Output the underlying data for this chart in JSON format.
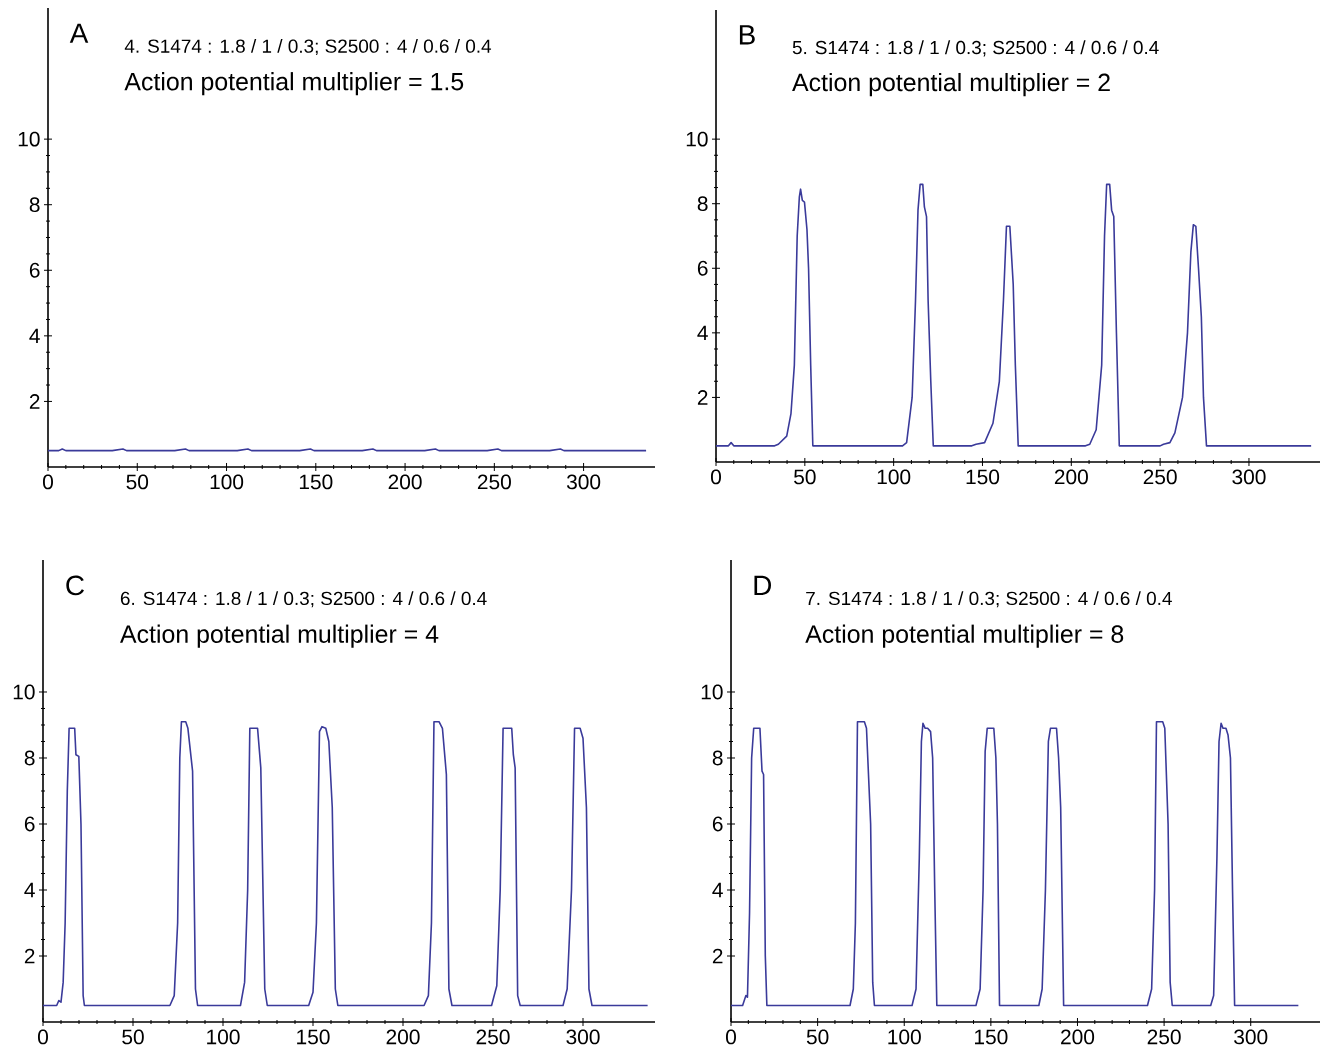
{
  "chart_data": [
    {
      "type": "line",
      "title": "4. S1474 : 1.8 / 1 / 0.3; S2500 : 4 / 0.6 / 0.4",
      "subtitle": "Action potential multiplier = 1.5",
      "annotations": [
        "A"
      ],
      "color": "#3a3a9a",
      "xlim": [
        0,
        340
      ],
      "ylim": [
        0,
        14
      ],
      "xticks": [
        0,
        50,
        100,
        150,
        200,
        250,
        300
      ],
      "yticks": [
        2,
        4,
        6,
        8,
        10
      ],
      "x": [
        0,
        6,
        8,
        10,
        36,
        42,
        44,
        71,
        77,
        79,
        106,
        112,
        114,
        141,
        147,
        149,
        176,
        182,
        184,
        211,
        217,
        219,
        246,
        252,
        254,
        281,
        287,
        289,
        335
      ],
      "values": [
        0.5,
        0.5,
        0.55,
        0.5,
        0.5,
        0.55,
        0.5,
        0.5,
        0.55,
        0.5,
        0.5,
        0.55,
        0.5,
        0.5,
        0.55,
        0.5,
        0.5,
        0.55,
        0.5,
        0.5,
        0.55,
        0.5,
        0.5,
        0.55,
        0.5,
        0.5,
        0.55,
        0.5,
        0.5
      ]
    },
    {
      "type": "line",
      "title": "5. S1474 : 1.8 / 1 / 0.3; S2500 : 4 / 0.6 / 0.4",
      "subtitle": "Action potential multiplier = 2",
      "annotations": [
        "B"
      ],
      "color": "#3a3a9a",
      "xlim": [
        0,
        340
      ],
      "ylim": [
        0,
        14
      ],
      "xticks": [
        0,
        50,
        100,
        150,
        200,
        250,
        300
      ],
      "yticks": [
        2,
        4,
        6,
        8,
        10
      ],
      "x": [
        0,
        7,
        8.5,
        10,
        33,
        35.1,
        39.8,
        42.2,
        44.1,
        45.7,
        46.9,
        47.6,
        48.6,
        49.8,
        51.2,
        52.1,
        53.3,
        54.5,
        105,
        107.3,
        110.4,
        112.3,
        113.7,
        114.9,
        116.4,
        117.3,
        118.5,
        119.4,
        120.9,
        122.3,
        144,
        146.4,
        151.2,
        155.9,
        159.5,
        161.8,
        163.5,
        165.4,
        167.3,
        168.5,
        170.1,
        208,
        210.4,
        214,
        217.1,
        218.7,
        219.9,
        221.6,
        222.7,
        223.9,
        225.4,
        227,
        250,
        251.9,
        255.5,
        258.3,
        262.6,
        265.4,
        267.3,
        268.7,
        270.1,
        271.6,
        273.2,
        274.4,
        276.1,
        335
      ],
      "values": [
        0.5,
        0.5,
        0.6,
        0.5,
        0.5,
        0.55,
        0.8,
        1.5,
        3,
        7,
        8.2,
        8.45,
        8.1,
        8.05,
        7.2,
        6,
        3,
        0.5,
        0.5,
        0.6,
        2,
        5,
        7.8,
        8.6,
        8.6,
        7.9,
        7.6,
        5,
        2.5,
        0.5,
        0.5,
        0.55,
        0.6,
        1.2,
        2.5,
        5,
        7.3,
        7.3,
        5.5,
        3,
        0.5,
        0.5,
        0.55,
        1,
        3,
        7,
        8.6,
        8.6,
        7.8,
        7.6,
        4,
        0.5,
        0.5,
        0.55,
        0.6,
        0.9,
        2,
        4,
        6.5,
        7.35,
        7.3,
        6,
        4.5,
        2,
        0.5,
        0.5
      ]
    },
    {
      "type": "line",
      "title": "6. S1474 : 1.8 / 1 / 0.3; S2500 : 4 / 0.6 / 0.4",
      "subtitle": "Action potential multiplier = 4",
      "annotations": [
        "C"
      ],
      "color": "#3a3a9a",
      "xlim": [
        0,
        340
      ],
      "ylim": [
        0,
        14
      ],
      "xticks": [
        0,
        50,
        100,
        150,
        200,
        250,
        300
      ],
      "yticks": [
        2,
        4,
        6,
        8,
        10
      ],
      "x": [
        0,
        7.6,
        8.8,
        10,
        11.2,
        12.3,
        13.5,
        14.5,
        17.6,
        18.3,
        19.9,
        21.1,
        22.3,
        23,
        70.5,
        72.9,
        74.8,
        76,
        76.9,
        79.3,
        80.5,
        83.1,
        84.7,
        85.9,
        109.7,
        112,
        113.7,
        114.9,
        119.2,
        121,
        123.2,
        124.6,
        147.6,
        150,
        151.9,
        153.6,
        155,
        157.1,
        158.8,
        160.7,
        162.4,
        163.8,
        211.7,
        214.1,
        215.8,
        217.2,
        220,
        221.9,
        224.1,
        225.5,
        227.2,
        249.2,
        252.1,
        254,
        255.6,
        260.4,
        261.3,
        262.3,
        263.7,
        265.1,
        288.9,
        291.2,
        293.6,
        295.3,
        298.4,
        300,
        301.9,
        303.3,
        305,
        335.9
      ],
      "values": [
        0.5,
        0.5,
        0.65,
        0.6,
        1.2,
        3,
        7,
        8.9,
        8.9,
        8.1,
        8.05,
        6,
        0.8,
        0.5,
        0.5,
        0.8,
        3,
        8,
        9.1,
        9.1,
        8.9,
        7.6,
        1,
        0.5,
        0.5,
        1.2,
        4,
        8.9,
        8.9,
        7.7,
        1,
        0.5,
        0.5,
        0.9,
        3,
        8.8,
        8.95,
        8.9,
        8.5,
        6.5,
        1,
        0.5,
        0.5,
        0.8,
        3,
        9.1,
        9.1,
        8.9,
        7.5,
        1,
        0.5,
        0.5,
        1.1,
        4,
        8.9,
        8.9,
        8.1,
        7.7,
        0.8,
        0.5,
        0.5,
        1,
        4,
        8.9,
        8.9,
        8.6,
        6.5,
        1,
        0.5,
        0.5
      ]
    },
    {
      "type": "line",
      "title": "7. S1474 : 1.8 / 1 / 0.3; S2500 : 4 / 0.6 / 0.4",
      "subtitle": "Action potential multiplier = 8",
      "annotations": [
        "D"
      ],
      "color": "#3a3a9a",
      "xlim": [
        0,
        340
      ],
      "ylim": [
        0,
        14
      ],
      "xticks": [
        0,
        50,
        100,
        150,
        200,
        250,
        300
      ],
      "yticks": [
        2,
        4,
        6,
        8,
        10
      ],
      "x": [
        0,
        6.7,
        8.6,
        9.5,
        10.7,
        11.9,
        13.1,
        16.7,
        17.9,
        18.8,
        19.8,
        20.7,
        68.7,
        70.6,
        71.8,
        73,
        77,
        78.2,
        80.6,
        81.8,
        82.8,
        104.5,
        106.8,
        108.7,
        109.9,
        110.8,
        112.1,
        113.5,
        115.2,
        116.4,
        117.6,
        118.8,
        141.4,
        143.8,
        145.5,
        146.7,
        147.9,
        151.7,
        152.9,
        153.8,
        155,
        177.7,
        179.6,
        181.5,
        183.2,
        184.4,
        187.9,
        189.1,
        190.3,
        192,
        240.4,
        242.8,
        244.5,
        245.6,
        249.2,
        250.4,
        252.3,
        253.5,
        254.7,
        276.9,
        278.6,
        280.5,
        281.7,
        282.9,
        284,
        285.7,
        286.9,
        288.3,
        289.5,
        290.7,
        327.5
      ],
      "values": [
        0.5,
        0.5,
        0.8,
        0.75,
        3.3,
        8,
        8.9,
        8.9,
        7.6,
        7.5,
        2,
        0.5,
        0.5,
        1,
        3,
        9.1,
        9.1,
        8.9,
        6,
        1.2,
        0.5,
        0.5,
        1,
        5,
        8.5,
        9.05,
        8.9,
        8.9,
        8.8,
        8,
        4,
        0.5,
        0.5,
        1,
        4,
        8.2,
        8.9,
        8.9,
        8,
        6,
        0.5,
        0.5,
        1,
        4,
        8.5,
        8.9,
        8.9,
        8,
        6.5,
        0.5,
        0.5,
        1,
        4,
        9.1,
        9.1,
        8.9,
        6,
        1.2,
        0.5,
        0.5,
        0.8,
        5,
        8.5,
        9.05,
        8.9,
        8.9,
        8.7,
        8,
        4,
        0.5,
        0.5
      ]
    }
  ]
}
